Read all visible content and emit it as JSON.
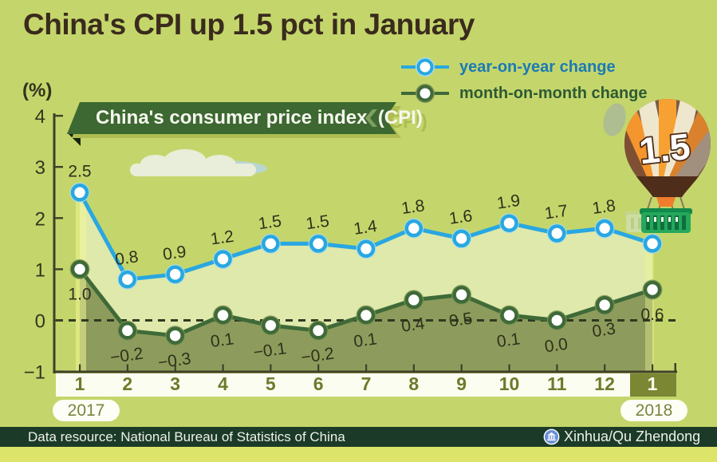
{
  "header": {
    "title": "China's CPI up 1.5 pct in January"
  },
  "banner": {
    "label": "China's consumer price index  (CPI)"
  },
  "balloon": {
    "value": "1.5"
  },
  "footer": {
    "source": "Data resource: National Bureau of Statistics of China",
    "credit": "Xinhua/Qu Zhendong",
    "logo": "xinhua-globe-logo"
  },
  "colors": {
    "background": "#c4d66b",
    "yoy_line": "#29a7e0",
    "yoy_glow": "#a5dcf0",
    "mom_line": "#3f6a38",
    "mom_glow": "#7d9455",
    "yoy_fill": "#dfe9ab",
    "mom_fill": "#8d9c5c",
    "highlight_band": "#f0f593",
    "zero_dash": "#2e3a21",
    "axis": "#3f4028",
    "value_label_text": "#2f301b",
    "tick_label_text": "#35351f",
    "month_text": "#6d7a2c",
    "month_highlight_text": "#fafcf0",
    "month_highlight_bg": "#7c8733",
    "banner_bg": "#3d6831",
    "footer_bg": "#1c3a28",
    "legend_yoy_text": "#1b7ab5",
    "legend_mom_text": "#2e5a34"
  },
  "chart_data": {
    "type": "line",
    "title": "China's consumer price index (CPI)",
    "unit": "(%)",
    "x_labels": [
      "1",
      "2",
      "3",
      "4",
      "5",
      "6",
      "7",
      "8",
      "9",
      "10",
      "11",
      "12",
      "1"
    ],
    "x_axis_years": [
      "2017",
      "2018"
    ],
    "ylim": [
      -1,
      4
    ],
    "yticks": [
      4,
      3,
      2,
      1,
      0,
      -1
    ],
    "grid": false,
    "zero_line": "dashed",
    "legend_position": "top-right",
    "series": [
      {
        "name": "year-on-year change",
        "color": "#29a7e0",
        "values": [
          2.5,
          0.8,
          0.9,
          1.2,
          1.5,
          1.5,
          1.4,
          1.8,
          1.6,
          1.9,
          1.7,
          1.8,
          1.5
        ]
      },
      {
        "name": "month-on-month change",
        "color": "#3f6a38",
        "values": [
          1.0,
          -0.2,
          -0.3,
          0.1,
          -0.1,
          -0.2,
          0.1,
          0.4,
          0.5,
          0.1,
          0.0,
          0.3,
          0.6
        ]
      }
    ],
    "callout_value": "1.5",
    "highlighted_month_index": 12
  }
}
